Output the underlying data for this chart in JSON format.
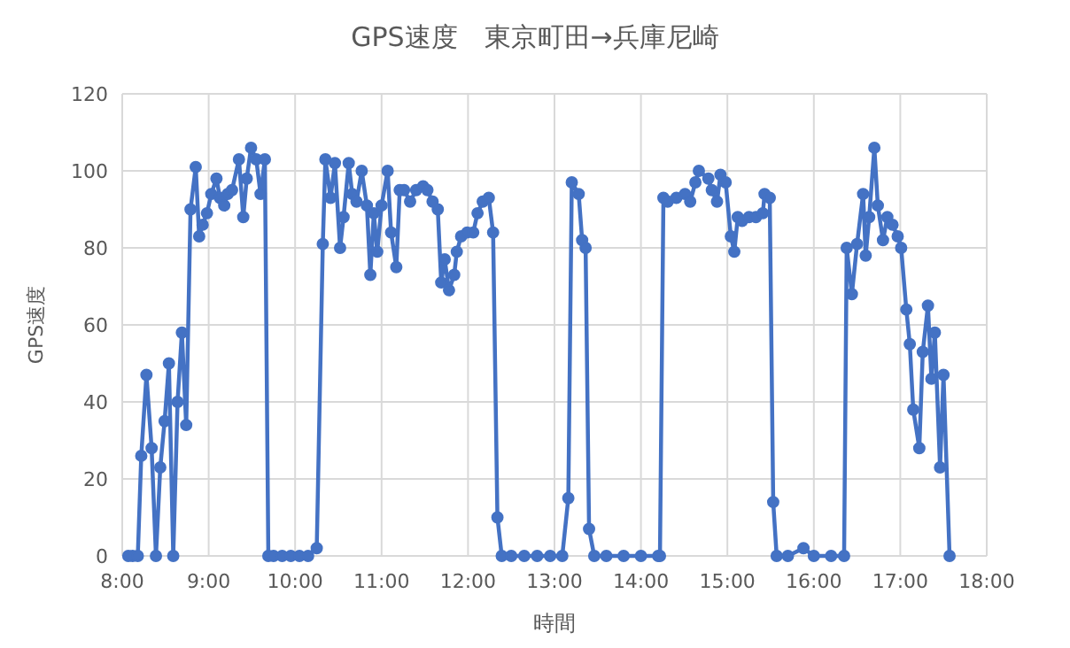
{
  "chart_data": {
    "type": "line",
    "title": "GPS速度　東京町田→兵庫尼崎",
    "xlabel": "時間",
    "ylabel": "GPS速度",
    "xlim": [
      8,
      18
    ],
    "xticks": [
      {
        "value": 8,
        "label": "8:00"
      },
      {
        "value": 9,
        "label": "9:00"
      },
      {
        "value": 10,
        "label": "10:00"
      },
      {
        "value": 11,
        "label": "11:00"
      },
      {
        "value": 12,
        "label": "12:00"
      },
      {
        "value": 13,
        "label": "13:00"
      },
      {
        "value": 14,
        "label": "14:00"
      },
      {
        "value": 15,
        "label": "15:00"
      },
      {
        "value": 16,
        "label": "16:00"
      },
      {
        "value": 17,
        "label": "17:00"
      },
      {
        "value": 18,
        "label": "18:00"
      }
    ],
    "ylim": [
      0,
      120
    ],
    "yticks": [
      0,
      20,
      40,
      60,
      80,
      100,
      120
    ],
    "grid": true,
    "marker": "circle",
    "line_style": "solid",
    "series": [
      {
        "color": "#4472c4",
        "x": [
          8.07,
          8.12,
          8.18,
          8.22,
          8.28,
          8.34,
          8.39,
          8.44,
          8.49,
          8.54,
          8.59,
          8.64,
          8.69,
          8.74,
          8.79,
          8.85,
          8.89,
          8.93,
          8.98,
          9.03,
          9.09,
          9.13,
          9.18,
          9.22,
          9.27,
          9.35,
          9.4,
          9.44,
          9.49,
          9.55,
          9.6,
          9.65,
          9.69,
          9.75,
          9.85,
          9.95,
          10.05,
          10.15,
          10.25,
          10.32,
          10.35,
          10.41,
          10.46,
          10.52,
          10.56,
          10.62,
          10.66,
          10.71,
          10.77,
          10.83,
          10.87,
          10.91,
          10.95,
          11.0,
          11.07,
          11.11,
          11.17,
          11.21,
          11.26,
          11.33,
          11.4,
          11.48,
          11.53,
          11.59,
          11.65,
          11.69,
          11.73,
          11.78,
          11.84,
          11.87,
          11.92,
          11.99,
          12.06,
          12.11,
          12.17,
          12.24,
          12.29,
          12.34,
          12.39,
          12.5,
          12.65,
          12.8,
          12.95,
          13.09,
          13.16,
          13.2,
          13.28,
          13.32,
          13.36,
          13.4,
          13.46,
          13.6,
          13.8,
          14.0,
          14.2,
          14.22,
          14.26,
          14.31,
          14.41,
          14.51,
          14.57,
          14.63,
          14.67,
          14.78,
          14.82,
          14.88,
          14.92,
          14.98,
          15.04,
          15.08,
          15.12,
          15.17,
          15.25,
          15.33,
          15.41,
          15.43,
          15.49,
          15.53,
          15.57,
          15.7,
          15.88,
          16.0,
          16.2,
          16.35,
          16.38,
          16.44,
          16.5,
          16.57,
          16.6,
          16.64,
          16.7,
          16.74,
          16.8,
          16.85,
          16.91,
          16.97,
          17.01,
          17.07,
          17.11,
          17.15,
          17.22,
          17.26,
          17.32,
          17.36,
          17.4,
          17.46,
          17.5,
          17.57
        ],
        "values": [
          0,
          0,
          0,
          26,
          47,
          28,
          0,
          23,
          35,
          50,
          0,
          40,
          58,
          34,
          90,
          101,
          83,
          86,
          89,
          94,
          98,
          93,
          91,
          94,
          95,
          103,
          88,
          98,
          106,
          103,
          94,
          103,
          0,
          0,
          0,
          0,
          0,
          0,
          2,
          81,
          103,
          93,
          102,
          80,
          88,
          102,
          94,
          92,
          100,
          91,
          73,
          89,
          79,
          91,
          100,
          84,
          75,
          95,
          95,
          92,
          95,
          96,
          95,
          92,
          90,
          71,
          77,
          69,
          73,
          79,
          83,
          84,
          84,
          89,
          92,
          93,
          84,
          10,
          0,
          0,
          0,
          0,
          0,
          0,
          15,
          97,
          94,
          82,
          80,
          7,
          0,
          0,
          0,
          0,
          0,
          0,
          93,
          92,
          93,
          94,
          92,
          97,
          100,
          98,
          95,
          92,
          99,
          97,
          83,
          79,
          88,
          87,
          88,
          88,
          89,
          94,
          93,
          14,
          0,
          0,
          2,
          0,
          0,
          0,
          80,
          68,
          81,
          94,
          78,
          88,
          106,
          91,
          82,
          88,
          86,
          83,
          80,
          64,
          55,
          38,
          28,
          53,
          65,
          46,
          58,
          23,
          47,
          0
        ]
      }
    ]
  }
}
